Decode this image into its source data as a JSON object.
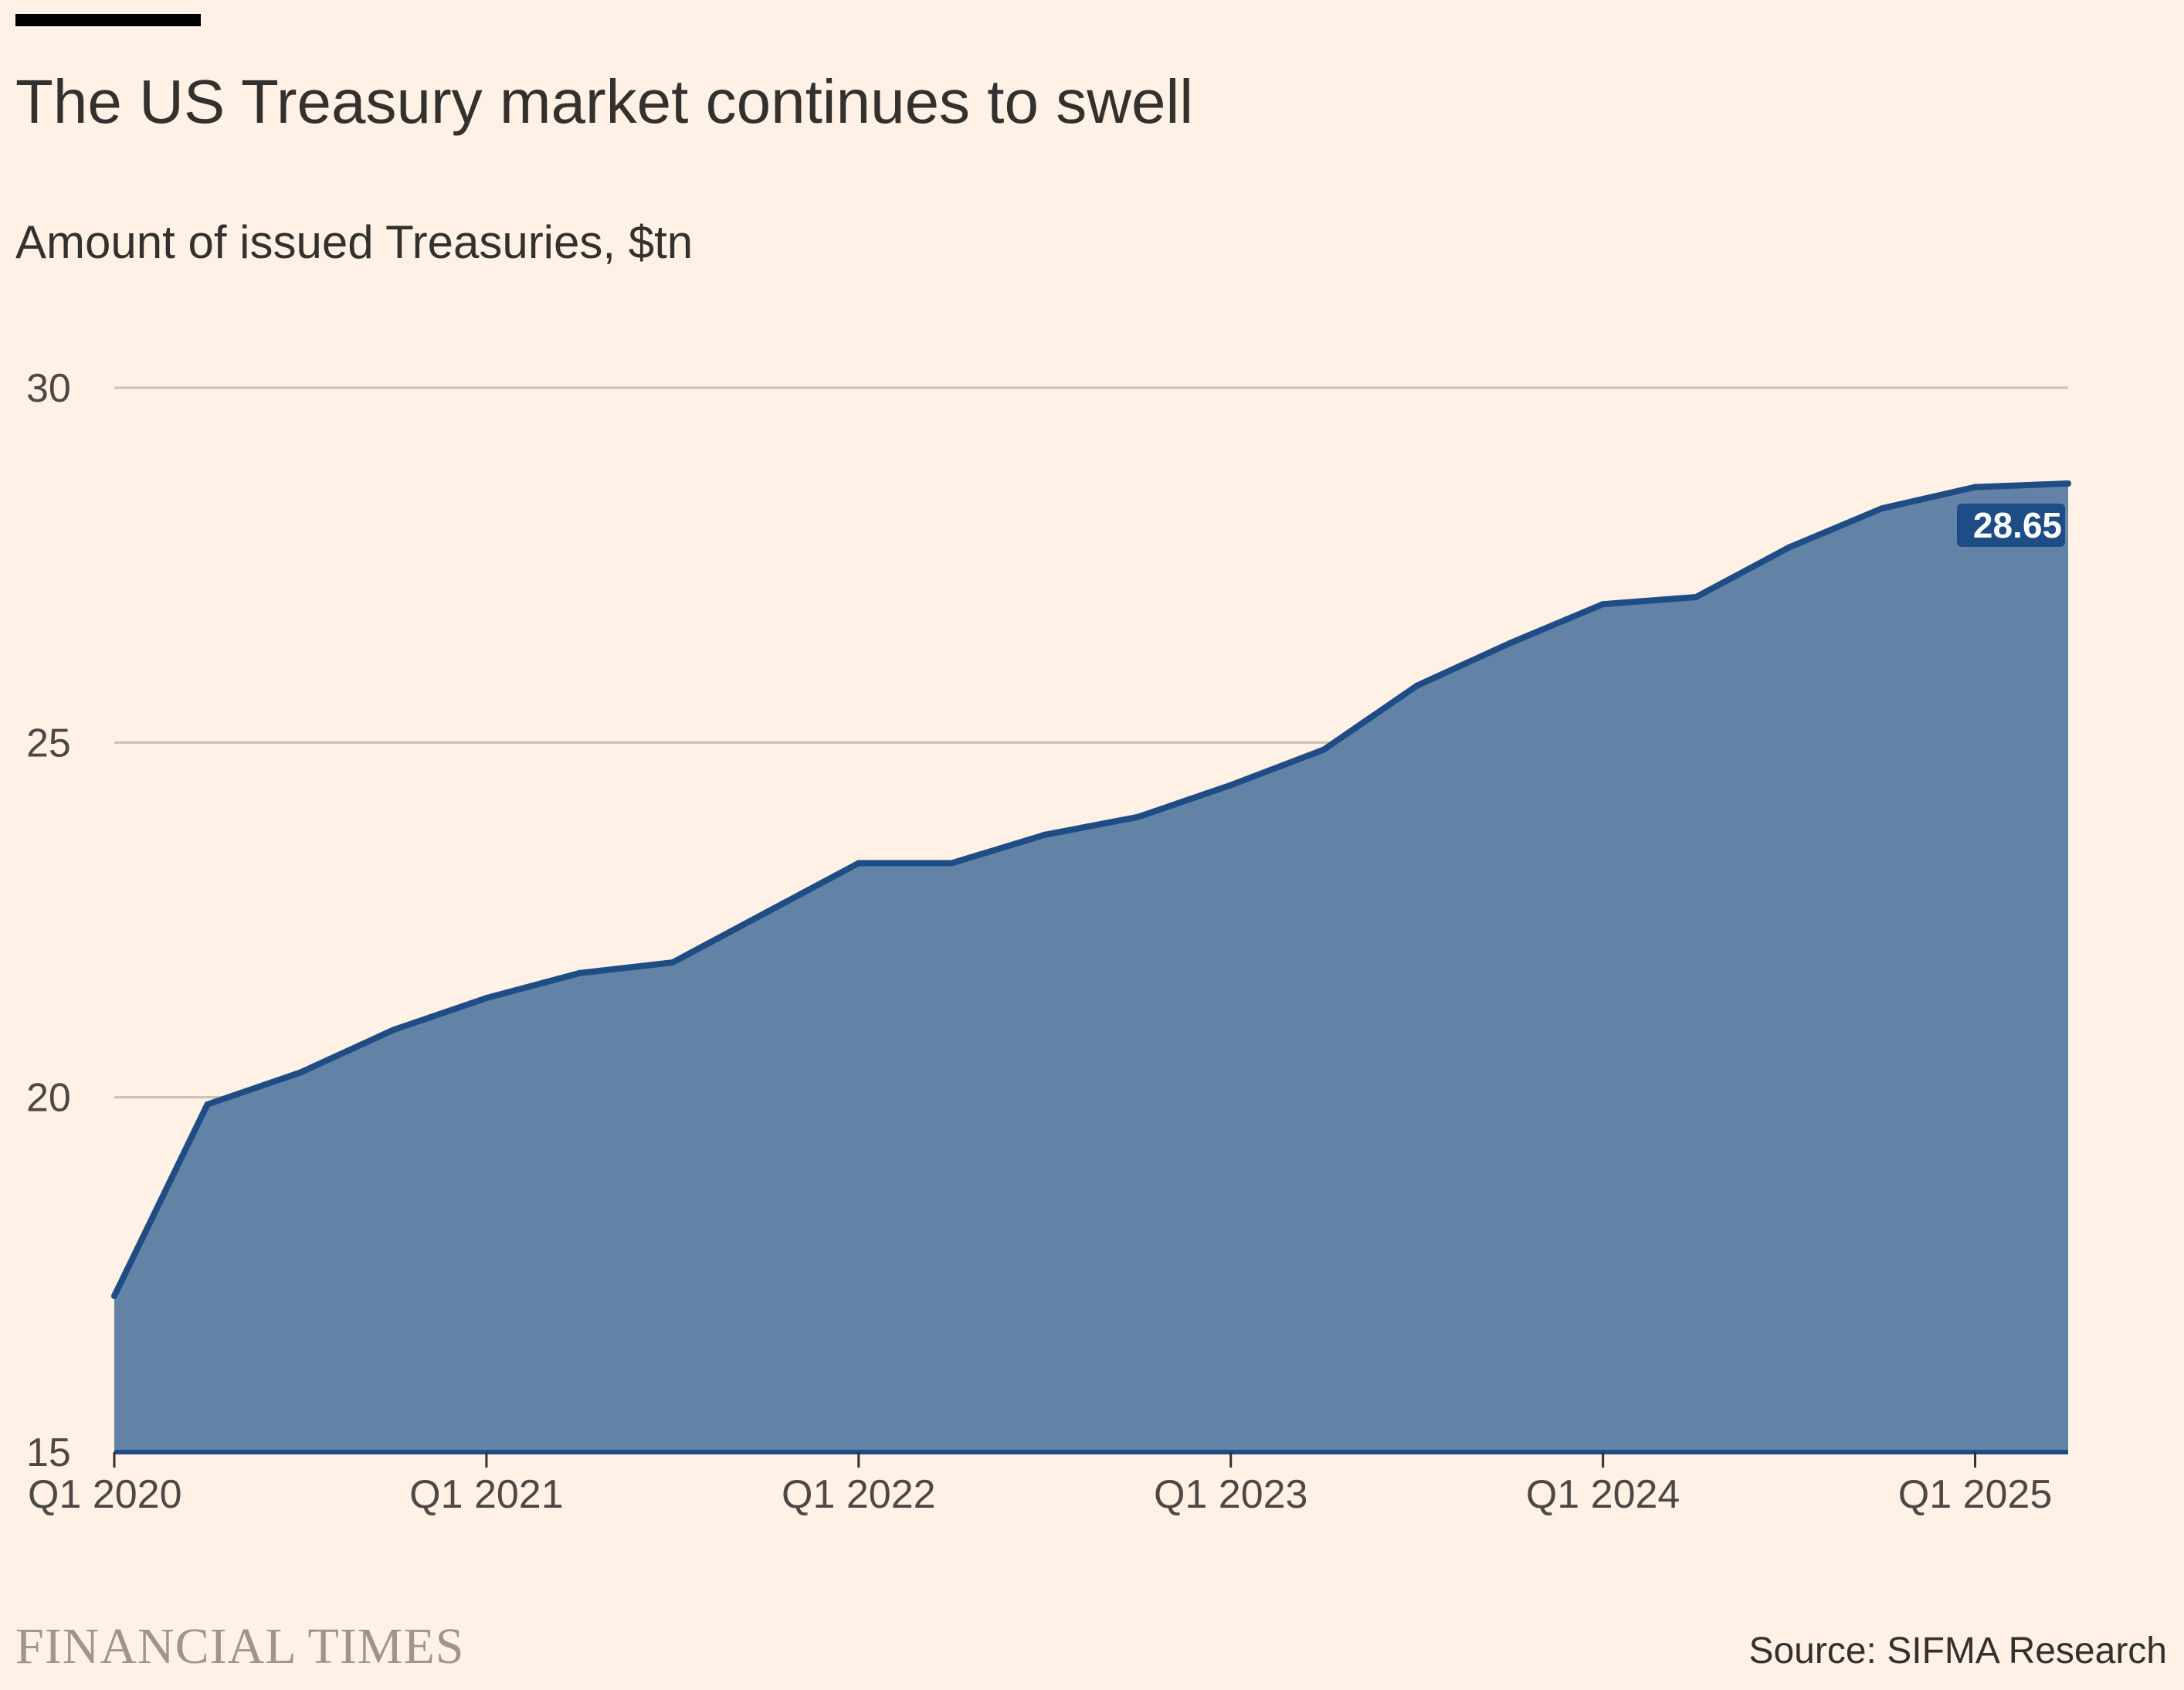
{
  "header": {
    "title": "The US Treasury market continues to swell",
    "subtitle": "Amount of issued Treasuries, $tn"
  },
  "footer": {
    "brand": "FINANCIAL TIMES",
    "source": "Source: SIFMA Research"
  },
  "colors": {
    "background": "#FFF1E5",
    "line": "#1E4C84",
    "area": "#6283A6",
    "grid": "#C9BFB6",
    "text": "#33302E"
  },
  "chart_data": {
    "type": "area",
    "title": "The US Treasury market continues to swell",
    "subtitle": "Amount of issued Treasuries, $tn",
    "xlabel": "",
    "ylabel": "",
    "ylim": [
      15,
      30
    ],
    "yticks": [
      15,
      20,
      25,
      30
    ],
    "ytick_labels": [
      "15",
      "20",
      "25",
      "30"
    ],
    "grid": true,
    "x": [
      "Q1 2020",
      "Q2 2020",
      "Q3 2020",
      "Q4 2020",
      "Q1 2021",
      "Q2 2021",
      "Q3 2021",
      "Q4 2021",
      "Q1 2022",
      "Q2 2022",
      "Q3 2022",
      "Q4 2022",
      "Q1 2023",
      "Q2 2023",
      "Q3 2023",
      "Q4 2023",
      "Q1 2024",
      "Q2 2024",
      "Q3 2024",
      "Q4 2024",
      "Q1 2025",
      "Q2 2025"
    ],
    "xtick_labels": [
      "Q1 2020",
      "Q1 2021",
      "Q1 2022",
      "Q1 2023",
      "Q1 2024",
      "Q1 2025"
    ],
    "series": [
      {
        "values": [
          17.2,
          19.9,
          20.35,
          20.95,
          21.4,
          21.75,
          21.9,
          22.6,
          23.3,
          23.3,
          23.7,
          23.95,
          24.4,
          24.9,
          25.8,
          26.4,
          26.95,
          27.05,
          27.75,
          28.3,
          28.6,
          28.65
        ]
      }
    ],
    "annotations": [
      {
        "text": "28.65",
        "x": "Q2 2025",
        "y": 28.65
      }
    ]
  }
}
